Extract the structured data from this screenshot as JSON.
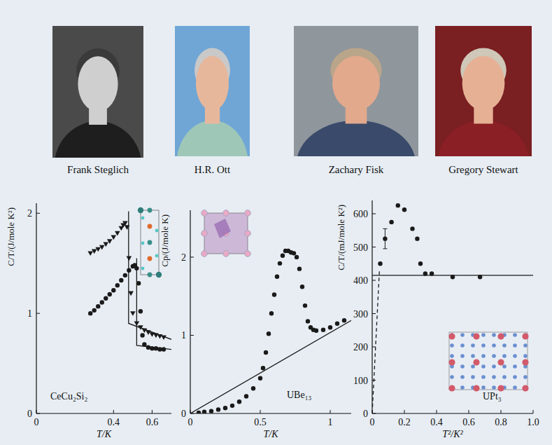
{
  "portraits": [
    {
      "name": "Frank Steglich"
    },
    {
      "name": "H.R. Ott"
    },
    {
      "name": "Zachary Fisk"
    },
    {
      "name": "Gregory Stewart"
    }
  ],
  "chart_data": [
    {
      "type": "scatter",
      "title": "CeCu₂Si₂",
      "x_label": "T/K",
      "y_label": "C/T/(J/mole K²)",
      "xlim": [
        0,
        0.7
      ],
      "xticks": [
        0,
        0.4,
        0.6
      ],
      "ylim": [
        0,
        2.1
      ],
      "yticks": [
        0,
        1,
        2
      ],
      "grid": false,
      "series": [
        {
          "marker": "triangle-down",
          "color": "#1a1a1a",
          "x": [
            0.28,
            0.3,
            0.32,
            0.34,
            0.36,
            0.38,
            0.4,
            0.42,
            0.44,
            0.45,
            0.46,
            0.47,
            0.48,
            0.49,
            0.5,
            0.52,
            0.54,
            0.56,
            0.58,
            0.6,
            0.62,
            0.64,
            0.66
          ],
          "values": [
            1.6,
            1.62,
            1.64,
            1.66,
            1.69,
            1.72,
            1.76,
            1.8,
            1.85,
            1.88,
            1.9,
            1.86,
            1.55,
            1.2,
            1.0,
            0.9,
            0.86,
            0.83,
            0.81,
            0.79,
            0.78,
            0.77,
            0.76
          ]
        },
        {
          "marker": "circle",
          "color": "#1a1a1a",
          "x": [
            0.28,
            0.3,
            0.32,
            0.34,
            0.36,
            0.38,
            0.4,
            0.42,
            0.44,
            0.46,
            0.48,
            0.5,
            0.51,
            0.52,
            0.53,
            0.54,
            0.55,
            0.56,
            0.58,
            0.6,
            0.62,
            0.64,
            0.66
          ],
          "values": [
            1.0,
            1.03,
            1.07,
            1.11,
            1.15,
            1.19,
            1.23,
            1.28,
            1.33,
            1.38,
            1.43,
            1.47,
            1.48,
            1.45,
            1.3,
            1.02,
            0.78,
            0.69,
            0.66,
            0.65,
            0.65,
            0.64,
            0.64
          ]
        },
        {
          "type": "line",
          "line_style": "solid",
          "color": "#1a1a1a",
          "x": [
            0.478,
            0.478,
            0.7
          ],
          "values": [
            2.02,
            0.9,
            0.74
          ]
        },
        {
          "type": "line",
          "line_style": "solid",
          "color": "#1a1a1a",
          "x": [
            0.52,
            0.52,
            0.7
          ],
          "values": [
            1.55,
            0.68,
            0.64
          ]
        }
      ]
    },
    {
      "type": "scatter",
      "title": "UBe₁₃",
      "x_label": "T/K",
      "y_label": "Cp/(J/mole K)",
      "xlim": [
        0,
        1.15
      ],
      "xticks": [
        0,
        0.5,
        1
      ],
      "ylim": [
        0,
        2.6
      ],
      "yticks": [
        0,
        1,
        2
      ],
      "grid": false,
      "series": [
        {
          "marker": "circle",
          "color": "#1a1a1a",
          "x": [
            0.06,
            0.1,
            0.15,
            0.2,
            0.25,
            0.3,
            0.35,
            0.4,
            0.45,
            0.5,
            0.52,
            0.54,
            0.56,
            0.58,
            0.6,
            0.62,
            0.64,
            0.66,
            0.68,
            0.7,
            0.72,
            0.74,
            0.76,
            0.78,
            0.8,
            0.82,
            0.84,
            0.86,
            0.88,
            0.9,
            0.95,
            1.0,
            1.05,
            1.1
          ],
          "values": [
            0.01,
            0.02,
            0.03,
            0.05,
            0.07,
            0.1,
            0.15,
            0.22,
            0.32,
            0.45,
            0.58,
            0.78,
            1.02,
            1.28,
            1.52,
            1.75,
            1.92,
            2.02,
            2.08,
            2.08,
            2.06,
            2.05,
            2.0,
            1.85,
            1.62,
            1.38,
            1.18,
            1.1,
            1.07,
            1.06,
            1.07,
            1.1,
            1.15,
            1.19
          ]
        },
        {
          "type": "line",
          "line_style": "solid",
          "color": "#1a1a1a",
          "x": [
            0,
            1.15
          ],
          "values": [
            0,
            1.19
          ]
        }
      ]
    },
    {
      "type": "scatter",
      "title": "UPt₃",
      "x_label": "T²/K²",
      "y_label": "C/T/(mJ/mole K²)",
      "xlim": [
        0,
        1
      ],
      "xticks": [
        0,
        0.2,
        0.4,
        0.6,
        0.8,
        {
          "value": 1,
          "label": "1.0"
        }
      ],
      "ylim": [
        0,
        640
      ],
      "yticks": [
        0,
        100,
        200,
        300,
        400,
        500,
        600
      ],
      "grid": false,
      "series": [
        {
          "marker": "circle",
          "color": "#1a1a1a",
          "x": [
            0.05,
            0.08,
            0.12,
            0.16,
            0.2,
            0.25,
            0.28,
            0.3,
            0.33,
            0.37,
            0.5,
            0.67
          ],
          "values": [
            450,
            525,
            575,
            625,
            612,
            555,
            525,
            450,
            420,
            420,
            410,
            410
          ],
          "errors": [
            null,
            30,
            null,
            null,
            null,
            null,
            null,
            null,
            null,
            null,
            null,
            null
          ]
        },
        {
          "type": "line",
          "line_style": "solid",
          "color": "#1a1a1a",
          "x": [
            0,
            1
          ],
          "values": [
            415,
            415
          ]
        },
        {
          "type": "line",
          "line_style": "dashed",
          "color": "#1a1a1a",
          "x": [
            0,
            0.045
          ],
          "values": [
            0,
            430
          ]
        }
      ]
    }
  ]
}
